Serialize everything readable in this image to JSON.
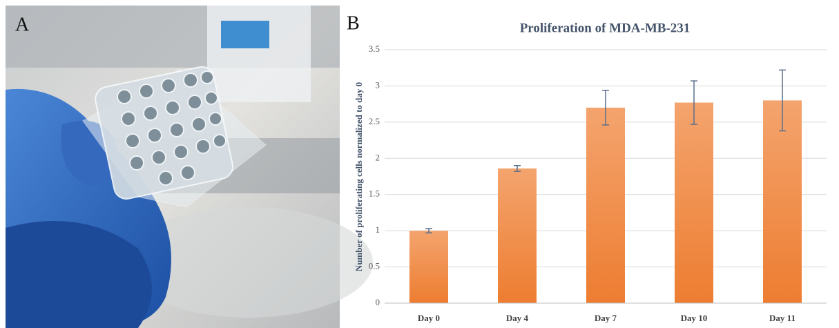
{
  "panels": {
    "a": "A",
    "b": "B"
  },
  "chart_data": {
    "type": "bar",
    "title": "Proliferation of MDA-MB-231",
    "ylabel": "Number of proliferating  cells normalized to day 0",
    "categories": [
      "Day 0",
      "Day 4",
      "Day 7",
      "Day 10",
      "Day 11"
    ],
    "values": [
      1.0,
      1.86,
      2.7,
      2.77,
      2.8
    ],
    "errors": [
      0.03,
      0.04,
      0.24,
      0.3,
      0.42
    ],
    "color": "#ed7d31",
    "error_color": "#5a6f8c",
    "ylim": [
      0,
      3.5
    ],
    "yticks": [
      0,
      0.5,
      1,
      1.5,
      2,
      2.5,
      3,
      3.5
    ],
    "grid": true
  }
}
